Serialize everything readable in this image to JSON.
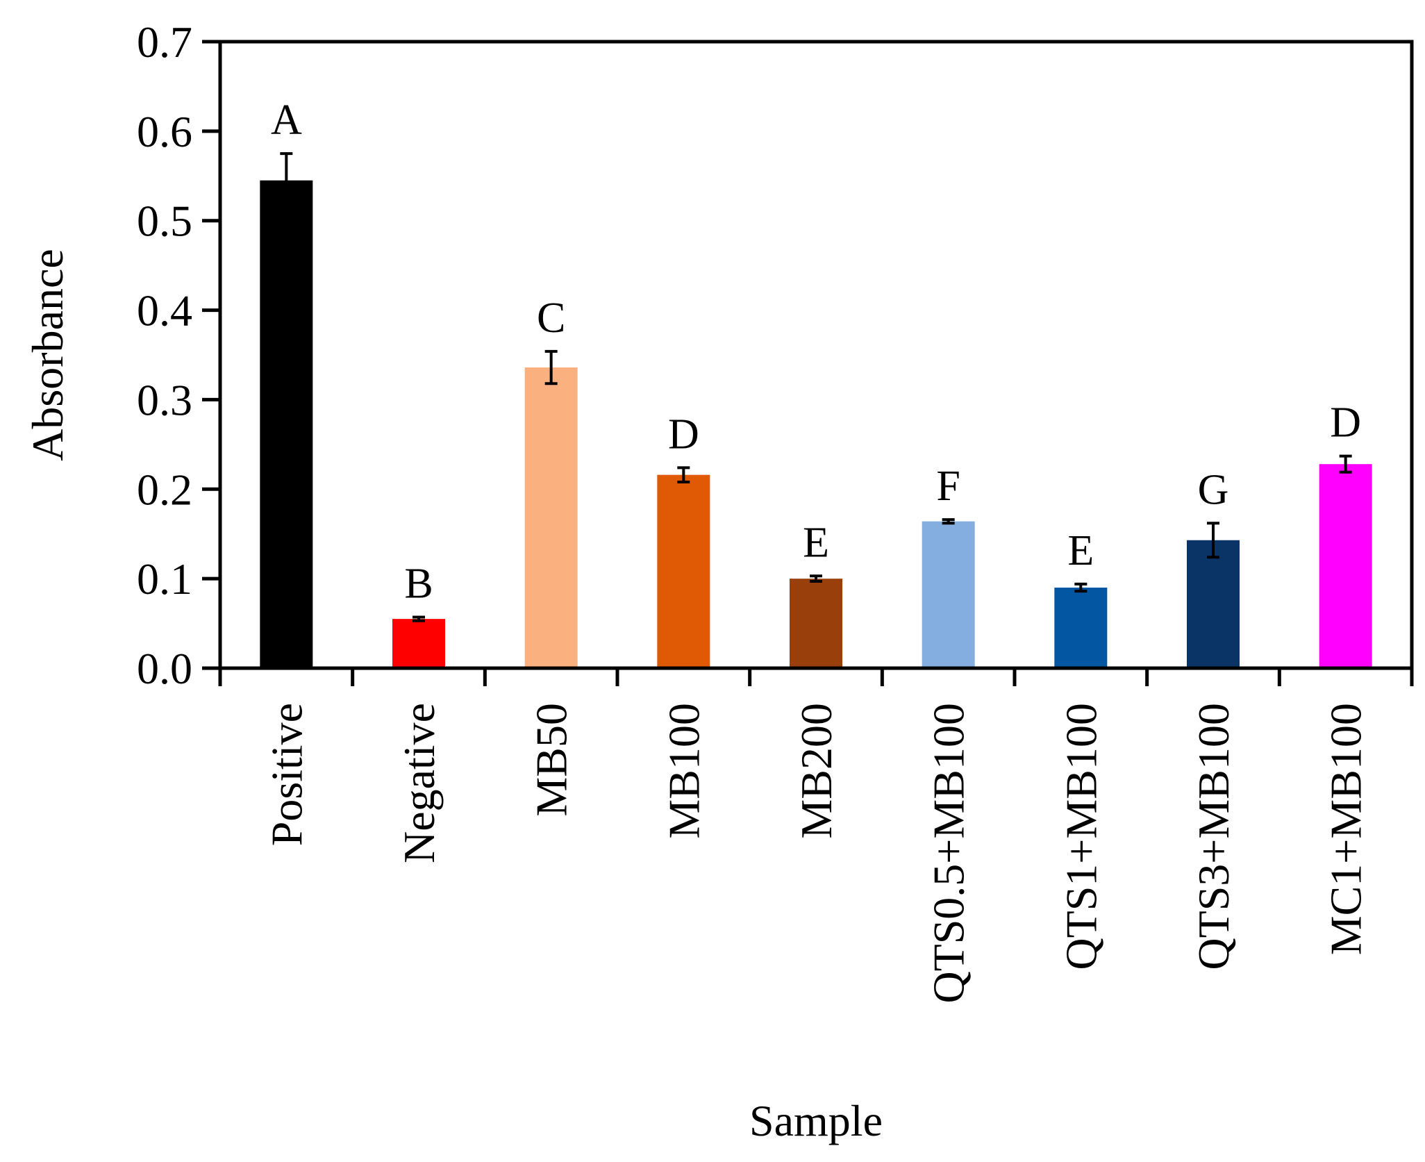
{
  "chart_data": {
    "type": "bar",
    "title": "",
    "xlabel": "Sample",
    "ylabel": "Absorbance",
    "ylim": [
      0,
      0.7
    ],
    "yticks": [
      0.0,
      0.1,
      0.2,
      0.3,
      0.4,
      0.5,
      0.6,
      0.7
    ],
    "ytick_labels": [
      "0.0",
      "0.1",
      "0.2",
      "0.3",
      "0.4",
      "0.5",
      "0.6",
      "0.7"
    ],
    "grid": false,
    "legend": "none",
    "categories": [
      "Positive",
      "Negative",
      "MB50",
      "MB100",
      "MB200",
      "QTS0.5+MB100",
      "QTS1+MB100",
      "QTS3+MB100",
      "MC1+MB100"
    ],
    "values": [
      0.545,
      0.055,
      0.336,
      0.216,
      0.1,
      0.164,
      0.09,
      0.143,
      0.228
    ],
    "errors": [
      0.03,
      0.002,
      0.018,
      0.008,
      0.003,
      0.002,
      0.004,
      0.019,
      0.009
    ],
    "significance_letters": [
      "A",
      "B",
      "C",
      "D",
      "E",
      "F",
      "E",
      "G",
      "D"
    ],
    "colors": [
      "#000000",
      "#ff0000",
      "#fbb080",
      "#e05a06",
      "#993f0b",
      "#84aee0",
      "#0356a2",
      "#0a3366",
      "#ff00ff"
    ]
  }
}
